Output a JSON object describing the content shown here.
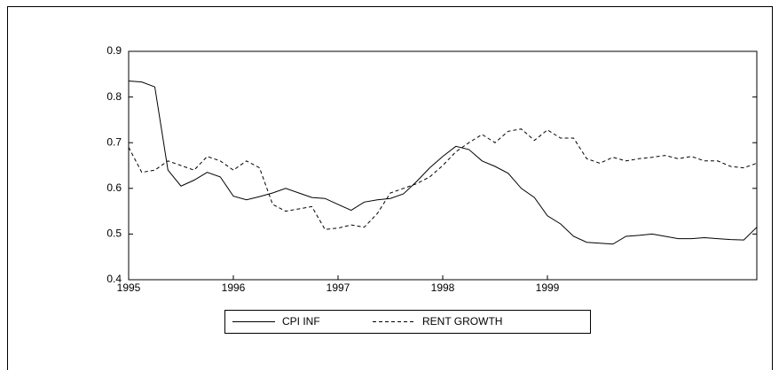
{
  "chart_data": {
    "type": "line",
    "x": [
      1995,
      1995.125,
      1995.25,
      1995.375,
      1995.5,
      1995.625,
      1995.75,
      1995.875,
      1996,
      1996.125,
      1996.25,
      1996.375,
      1996.5,
      1996.625,
      1996.75,
      1996.875,
      1997,
      1997.125,
      1997.25,
      1997.375,
      1997.5,
      1997.625,
      1997.75,
      1997.875,
      1998,
      1998.125,
      1998.25,
      1998.375,
      1998.5,
      1998.625,
      1998.75,
      1998.875,
      1999,
      1999.125,
      1999.25,
      1999.375,
      1999.5,
      1999.625,
      1999.75,
      1999.875,
      2000,
      2000.125,
      2000.25,
      2000.375,
      2000.5,
      2000.625,
      2000.75,
      2000.875,
      2001
    ],
    "series": [
      {
        "name": "CPI INF",
        "color": "#000000",
        "dash": false,
        "values": [
          0.835,
          0.833,
          0.822,
          0.64,
          0.605,
          0.618,
          0.635,
          0.625,
          0.583,
          0.575,
          0.582,
          0.59,
          0.6,
          0.59,
          0.58,
          0.578,
          0.565,
          0.552,
          0.57,
          0.575,
          0.578,
          0.588,
          0.615,
          0.645,
          0.67,
          0.692,
          0.685,
          0.66,
          0.648,
          0.633,
          0.6,
          0.58,
          0.54,
          0.522,
          0.495,
          0.482,
          0.48,
          0.478,
          0.495,
          0.497,
          0.5,
          0.495,
          0.49,
          0.49,
          0.492,
          0.49,
          0.488,
          0.487,
          0.515
        ]
      },
      {
        "name": "RENT GROWTH",
        "color": "#000000",
        "dash": true,
        "values": [
          0.69,
          0.635,
          0.64,
          0.66,
          0.65,
          0.64,
          0.67,
          0.66,
          0.64,
          0.66,
          0.645,
          0.565,
          0.55,
          0.555,
          0.56,
          0.51,
          0.513,
          0.52,
          0.515,
          0.545,
          0.59,
          0.6,
          0.61,
          0.625,
          0.65,
          0.68,
          0.7,
          0.718,
          0.7,
          0.725,
          0.73,
          0.705,
          0.728,
          0.71,
          0.71,
          0.665,
          0.655,
          0.668,
          0.66,
          0.665,
          0.668,
          0.672,
          0.665,
          0.67,
          0.66,
          0.66,
          0.648,
          0.645,
          0.655
        ]
      }
    ],
    "xlim": [
      1995,
      2001
    ],
    "xticks": [
      1995,
      1996,
      1997,
      1998,
      1999
    ],
    "ylim": [
      0.4,
      0.9
    ],
    "yticks": [
      0.4,
      0.5,
      0.6,
      0.7,
      0.8,
      0.9
    ]
  }
}
